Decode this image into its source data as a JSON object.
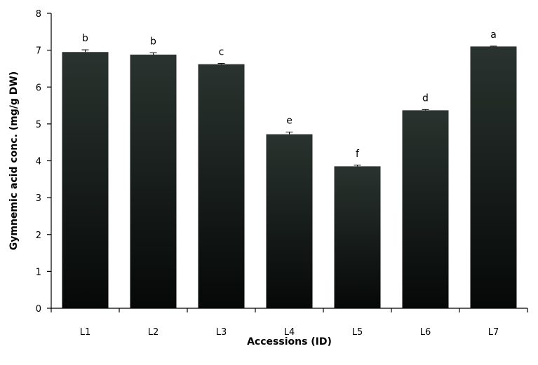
{
  "chart_data": {
    "type": "bar",
    "title": "",
    "xlabel": "Accessions (ID)",
    "ylabel": "Gymnemic acid conc. (mg/g DW)",
    "ylim": [
      0,
      8
    ],
    "yticks": [
      0,
      1,
      2,
      3,
      4,
      5,
      6,
      7,
      8
    ],
    "grid": false,
    "legend": "none",
    "categories": [
      "L1",
      "L2",
      "L3",
      "L4",
      "L5",
      "L6",
      "L7"
    ],
    "values": [
      6.95,
      6.88,
      6.62,
      4.72,
      3.85,
      5.37,
      7.1
    ],
    "errors": [
      0.06,
      0.05,
      0.02,
      0.06,
      0.03,
      0.02,
      0.01
    ],
    "significance_labels": [
      "b",
      "b",
      "c",
      "e",
      "f",
      "d",
      "a"
    ],
    "colors": {
      "bar_top": "#2a332f",
      "bar_bottom": "#050807",
      "axis": "#000000"
    }
  }
}
